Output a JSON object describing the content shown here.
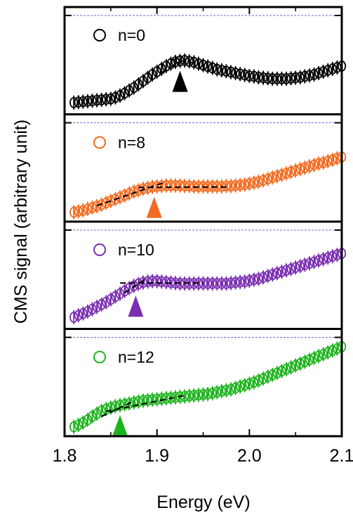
{
  "chart_data": {
    "type": "scatter",
    "title": "",
    "xlabel": "Energy (eV)",
    "ylabel": "CMS signal (arbitrary unit)",
    "xlim": [
      1.8,
      2.1
    ],
    "xticks": [
      "1.8",
      "1.9",
      "2.0",
      "2.1"
    ],
    "y_ticks_labeled": false,
    "grid": false,
    "panel_separators": "dashed",
    "stacked_panels": true,
    "error_bars": true,
    "x": [
      1.81,
      1.815,
      1.82,
      1.825,
      1.83,
      1.835,
      1.84,
      1.845,
      1.85,
      1.855,
      1.86,
      1.865,
      1.87,
      1.875,
      1.88,
      1.885,
      1.89,
      1.895,
      1.9,
      1.905,
      1.91,
      1.915,
      1.92,
      1.925,
      1.93,
      1.935,
      1.94,
      1.945,
      1.95,
      1.955,
      1.96,
      1.965,
      1.97,
      1.975,
      1.98,
      1.985,
      1.99,
      1.995,
      2.0,
      2.005,
      2.01,
      2.015,
      2.02,
      2.025,
      2.03,
      2.035,
      2.04,
      2.045,
      2.05,
      2.055,
      2.06,
      2.065,
      2.07,
      2.075,
      2.08,
      2.085,
      2.09,
      2.095,
      2.1
    ],
    "series": [
      {
        "name": "n=0",
        "color": "#000000",
        "values": [
          0.1,
          0.11,
          0.12,
          0.13,
          0.14,
          0.15,
          0.16,
          0.17,
          0.18,
          0.21,
          0.25,
          0.3,
          0.36,
          0.42,
          0.49,
          0.56,
          0.63,
          0.7,
          0.76,
          0.82,
          0.88,
          0.93,
          0.97,
          0.99,
          1.0,
          0.98,
          0.96,
          0.93,
          0.9,
          0.87,
          0.84,
          0.81,
          0.79,
          0.77,
          0.75,
          0.73,
          0.71,
          0.69,
          0.67,
          0.66,
          0.64,
          0.63,
          0.62,
          0.61,
          0.61,
          0.61,
          0.61,
          0.62,
          0.63,
          0.64,
          0.66,
          0.68,
          0.7,
          0.73,
          0.76,
          0.79,
          0.82,
          0.85,
          0.88
        ],
        "peak_marker_x": 1.925,
        "fit_lines": [
          {
            "x": [
              1.905,
              1.93
            ],
            "y": [
              0.74,
              1.04
            ]
          },
          {
            "x": [
              1.915,
              1.945
            ],
            "y": [
              1.03,
              0.93
            ]
          }
        ]
      },
      {
        "name": "n=8",
        "color": "#f26b21",
        "values": [
          0.05,
          0.07,
          0.09,
          0.12,
          0.15,
          0.18,
          0.21,
          0.25,
          0.29,
          0.33,
          0.37,
          0.41,
          0.45,
          0.49,
          0.52,
          0.55,
          0.57,
          0.59,
          0.6,
          0.61,
          0.62,
          0.62,
          0.62,
          0.62,
          0.61,
          0.61,
          0.6,
          0.6,
          0.6,
          0.6,
          0.6,
          0.6,
          0.6,
          0.61,
          0.61,
          0.62,
          0.63,
          0.64,
          0.66,
          0.68,
          0.7,
          0.73,
          0.76,
          0.79,
          0.82,
          0.85,
          0.88,
          0.91,
          0.94,
          0.97,
          1.0,
          1.03,
          1.06,
          1.09,
          1.11,
          1.14,
          1.17,
          1.2,
          1.23
        ],
        "peak_marker_x": 1.897,
        "fit_lines": [
          {
            "x": [
              1.835,
              1.91
            ],
            "y": [
              0.19,
              0.7
            ]
          },
          {
            "x": [
              1.88,
              1.975
            ],
            "y": [
              0.58,
              0.59
            ]
          }
        ]
      },
      {
        "name": "n=10",
        "color": "#7a2fb0",
        "values": [
          0.1,
          0.14,
          0.18,
          0.22,
          0.27,
          0.32,
          0.37,
          0.42,
          0.48,
          0.54,
          0.6,
          0.66,
          0.72,
          0.77,
          0.81,
          0.84,
          0.86,
          0.87,
          0.87,
          0.86,
          0.85,
          0.84,
          0.83,
          0.82,
          0.82,
          0.82,
          0.82,
          0.82,
          0.82,
          0.82,
          0.82,
          0.82,
          0.82,
          0.82,
          0.83,
          0.84,
          0.85,
          0.86,
          0.88,
          0.9,
          0.92,
          0.95,
          0.98,
          1.01,
          1.04,
          1.07,
          1.1,
          1.13,
          1.16,
          1.19,
          1.22,
          1.25,
          1.28,
          1.31,
          1.34,
          1.37,
          1.4,
          1.43,
          1.46
        ],
        "peak_marker_x": 1.877,
        "fit_lines": [
          {
            "x": [
              1.865,
              1.89
            ],
            "y": [
              0.62,
              0.94
            ]
          },
          {
            "x": [
              1.86,
              1.95
            ],
            "y": [
              0.83,
              0.83
            ]
          }
        ]
      },
      {
        "name": "n=12",
        "color": "#1db31d",
        "values": [
          0.05,
          0.09,
          0.14,
          0.2,
          0.27,
          0.33,
          0.39,
          0.43,
          0.46,
          0.49,
          0.51,
          0.53,
          0.55,
          0.57,
          0.59,
          0.61,
          0.62,
          0.63,
          0.64,
          0.65,
          0.66,
          0.67,
          0.68,
          0.69,
          0.7,
          0.71,
          0.72,
          0.73,
          0.74,
          0.75,
          0.77,
          0.79,
          0.81,
          0.83,
          0.85,
          0.88,
          0.91,
          0.94,
          0.97,
          1.0,
          1.04,
          1.08,
          1.12,
          1.16,
          1.2,
          1.24,
          1.28,
          1.32,
          1.36,
          1.4,
          1.44,
          1.48,
          1.52,
          1.56,
          1.6,
          1.64,
          1.68,
          1.72,
          1.76
        ],
        "peak_marker_x": 1.86,
        "fit_lines": [
          {
            "x": [
              1.84,
              1.875
            ],
            "y": [
              0.27,
              0.6
            ]
          },
          {
            "x": [
              1.845,
              1.93
            ],
            "y": [
              0.38,
              0.72
            ]
          }
        ]
      }
    ]
  }
}
